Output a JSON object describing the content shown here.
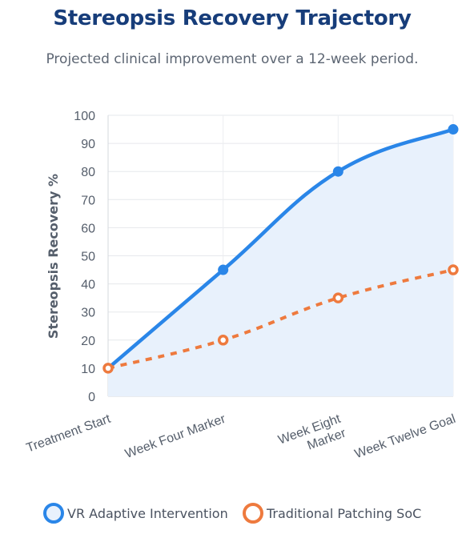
{
  "chart_data": {
    "type": "line",
    "title": "Stereopsis Recovery Trajectory",
    "subtitle": "Projected clinical improvement over a 12-week period.",
    "ylabel": "Stereopsis Recovery %",
    "xlabel": "",
    "ylim": [
      0,
      100
    ],
    "yticks": [
      0,
      10,
      20,
      30,
      40,
      50,
      60,
      70,
      80,
      90,
      100
    ],
    "grid": true,
    "categories": [
      [
        "Treatment Start"
      ],
      [
        "Week Four Marker"
      ],
      [
        "Week Eight",
        "Marker"
      ],
      [
        "Week Twelve Goal"
      ]
    ],
    "series": [
      {
        "name": "VR Adaptive Intervention",
        "values": [
          10,
          45,
          80,
          95
        ],
        "color": "#2a86e8",
        "fill": "#e8f1fc",
        "style": "solid"
      },
      {
        "name": "Traditional Patching SoC",
        "values": [
          10,
          20,
          35,
          45
        ],
        "color": "#ee7a3e",
        "style": "dashed"
      }
    ],
    "legend": "bottom"
  }
}
